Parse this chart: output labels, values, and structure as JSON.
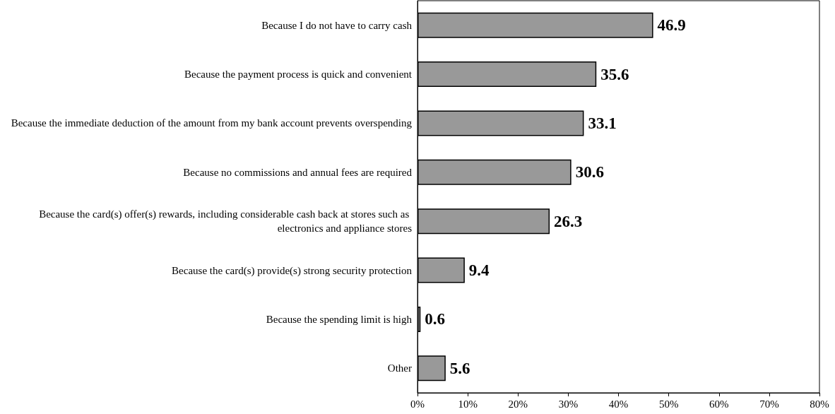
{
  "chart_data": {
    "type": "bar",
    "orientation": "horizontal",
    "categories": [
      "Because I do not have to carry cash",
      "Because the payment process is quick and convenient",
      "Because the immediate deduction of the amount from my bank account prevents overspending",
      "Because no commissions and annual fees are required",
      "Because the card(s) offer(s) rewards, including considerable cash back at stores such as electronics and appliance stores",
      "Because the card(s) provide(s) strong security protection",
      "Because the spending limit is high",
      "Other"
    ],
    "values": [
      46.9,
      35.6,
      33.1,
      30.6,
      26.3,
      9.4,
      0.6,
      5.6
    ],
    "color": "#999999",
    "xlim": [
      0,
      80
    ],
    "xticks": [
      {
        "value": 0,
        "label": "0%"
      },
      {
        "value": 10,
        "label": "10%"
      },
      {
        "value": 20,
        "label": "20%"
      },
      {
        "value": 30,
        "label": "30%"
      },
      {
        "value": 40,
        "label": "40%"
      },
      {
        "value": 50,
        "label": "50%"
      },
      {
        "value": 60,
        "label": "60%"
      },
      {
        "value": 70,
        "label": "70%"
      },
      {
        "value": 80,
        "label": "80%"
      }
    ],
    "data_labels": true,
    "grid": false
  }
}
